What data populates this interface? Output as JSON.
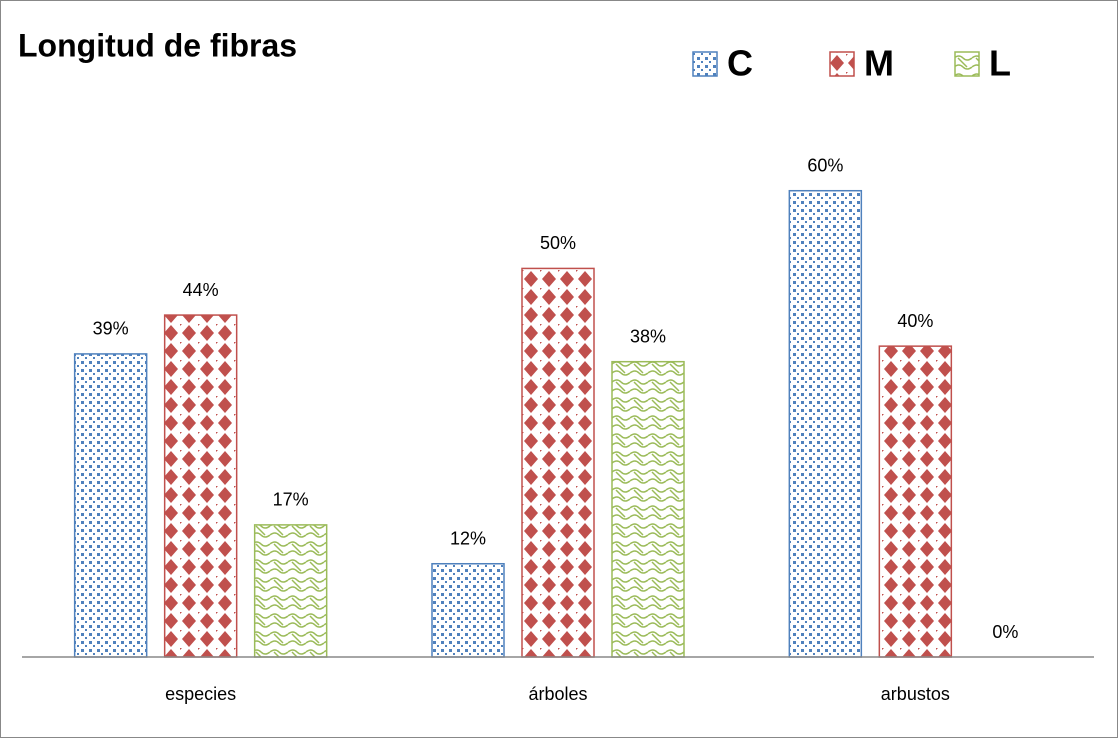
{
  "chart_data": {
    "type": "bar",
    "title": "Longitud de fibras",
    "categories": [
      "especies",
      "árboles",
      "arbustos"
    ],
    "series": [
      {
        "name": "C",
        "color": "#4f81bd",
        "values": [
          39,
          12,
          60
        ],
        "value_labels": [
          "39%",
          "12%",
          "60%"
        ]
      },
      {
        "name": "M",
        "color": "#c0504d",
        "values": [
          44,
          50,
          40
        ],
        "value_labels": [
          "44%",
          "50%",
          "40%"
        ]
      },
      {
        "name": "L",
        "color": "#9bbb59",
        "values": [
          17,
          38,
          0
        ],
        "value_labels": [
          "17%",
          "38%",
          "0%"
        ]
      }
    ],
    "ylim": [
      0,
      70
    ],
    "legend": "top-right"
  }
}
